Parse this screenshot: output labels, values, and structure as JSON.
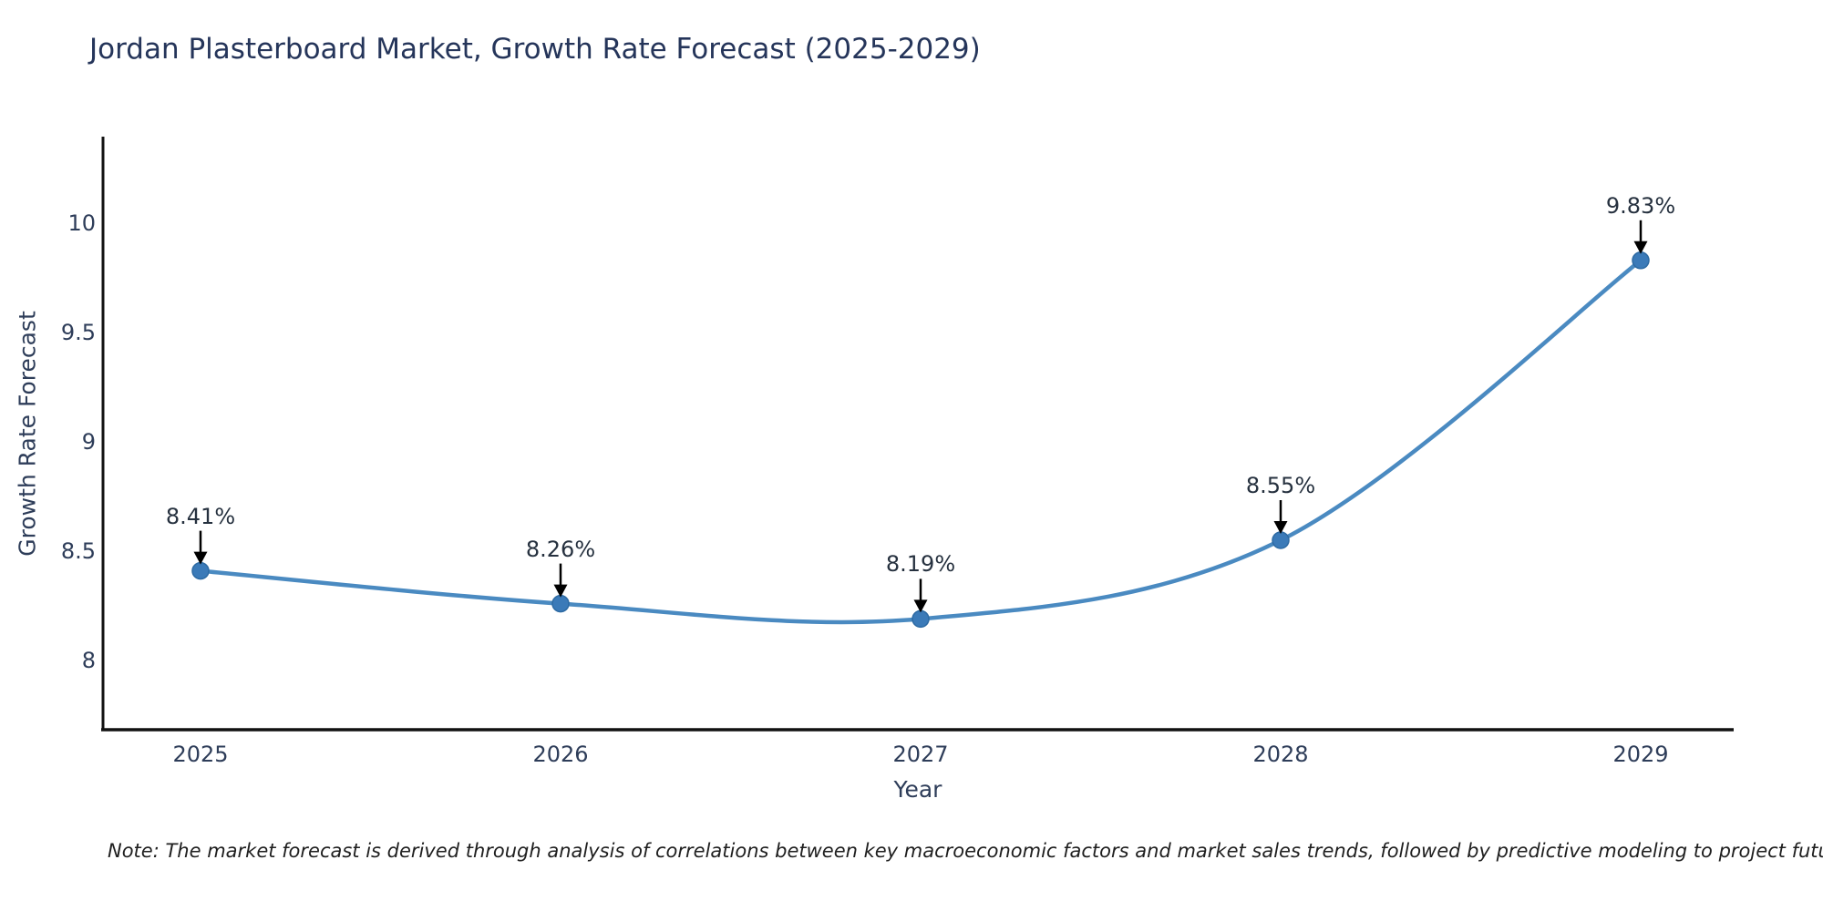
{
  "chart_data": {
    "type": "line",
    "title": "Jordan Plasterboard Market, Growth Rate Forecast (2025-2029)",
    "xlabel": "Year",
    "ylabel": "Growth Rate Forecast",
    "categories": [
      "2025",
      "2026",
      "2027",
      "2028",
      "2029"
    ],
    "values": [
      8.41,
      8.26,
      8.19,
      8.55,
      9.83
    ],
    "point_labels": [
      "8.41%",
      "8.26%",
      "8.19%",
      "8.55%",
      "9.83%"
    ],
    "ytick_labels": [
      "8",
      "8.5",
      "9",
      "9.5",
      "10"
    ],
    "ytick_values": [
      8,
      8.5,
      9,
      9.5,
      10
    ],
    "ylim": [
      7.68,
      10.38
    ],
    "grid": false,
    "legend_position": "none",
    "smooth": true,
    "line_color": "#4a8ac1",
    "marker_color": "#3b7ab8",
    "marker_edge_color": "#2d6aa3",
    "axis_color": "#111111",
    "arrow_color": "#000000"
  },
  "note": {
    "text": "Note: The market forecast is derived through analysis of correlations between key macroeconomic factors and market sales trends, followed by predictive modeling to project future sales"
  }
}
